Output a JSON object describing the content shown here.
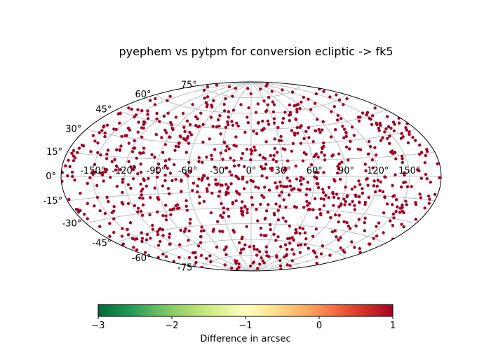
{
  "chart_data": {
    "type": "scatter",
    "projection": "aitoff",
    "title": "pyephem vs pytpm for conversion ecliptic -> fk5",
    "x_ticks_deg": [
      -150,
      -120,
      -90,
      -60,
      -30,
      0,
      30,
      60,
      90,
      120,
      150
    ],
    "x_tick_labels": [
      "-150°",
      "-120°",
      "-90°",
      "-60°",
      "-30°",
      "0°",
      "30°",
      "60°",
      "90°",
      "120°",
      "150°"
    ],
    "y_ticks_deg": [
      -75,
      -60,
      -45,
      -30,
      -15,
      0,
      15,
      30,
      45,
      60,
      75
    ],
    "y_tick_labels": [
      "-75°",
      "-60°",
      "-45°",
      "-30°",
      "-15°",
      "0°",
      "15°",
      "30°",
      "45°",
      "60°",
      "75°"
    ],
    "grid": true,
    "point_color": "#a50026",
    "point_value_approx": 1,
    "point_count_approx": 1000,
    "colorbar": {
      "label": "Difference in arcsec",
      "colormap": "RdYlGn_r",
      "range": [
        -3,
        1
      ],
      "ticks": [
        -3,
        -2,
        -1,
        0,
        1
      ],
      "tick_labels": [
        "−3",
        "−2",
        "−1",
        "0",
        "1"
      ],
      "colors": [
        "#006837",
        "#1a9850",
        "#66bd63",
        "#a6d96a",
        "#d9ef8b",
        "#ffffbf",
        "#fee08b",
        "#fdae61",
        "#f46d43",
        "#d73027",
        "#a50026"
      ]
    }
  }
}
